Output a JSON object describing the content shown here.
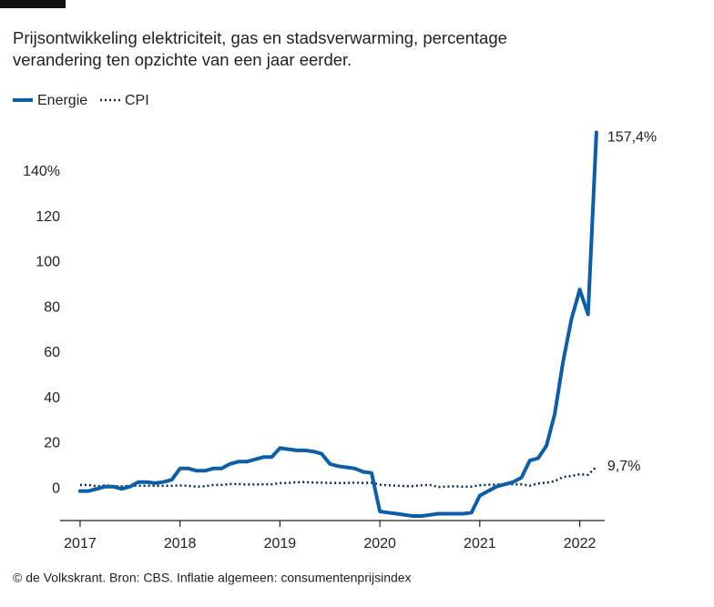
{
  "chart_data": {
    "type": "line",
    "title": "Prijsontwikkeling elektriciteit, gas en stadsverwarming, percentage verandering ten opzichte van een jaar eerder.",
    "source": "© de Volkskrant. Bron: CBS. Inflatie algemeen: consumentenprijsindex",
    "x": [
      2017,
      2017.083,
      2017.167,
      2017.25,
      2017.333,
      2017.417,
      2017.5,
      2017.583,
      2017.667,
      2017.75,
      2017.833,
      2017.917,
      2018,
      2018.083,
      2018.167,
      2018.25,
      2018.333,
      2018.417,
      2018.5,
      2018.583,
      2018.667,
      2018.75,
      2018.833,
      2018.917,
      2019,
      2019.083,
      2019.167,
      2019.25,
      2019.333,
      2019.417,
      2019.5,
      2019.583,
      2019.667,
      2019.75,
      2019.833,
      2019.917,
      2020,
      2020.083,
      2020.167,
      2020.25,
      2020.333,
      2020.417,
      2020.5,
      2020.583,
      2020.667,
      2020.75,
      2020.833,
      2020.917,
      2021,
      2021.083,
      2021.167,
      2021.25,
      2021.333,
      2021.417,
      2021.5,
      2021.583,
      2021.667,
      2021.75,
      2021.833,
      2021.917,
      2022,
      2022.083,
      2022.167
    ],
    "series": [
      {
        "name": "Energie",
        "color": "#0b5ea8",
        "style": "solid",
        "values": [
          -1,
          -1,
          0,
          1,
          1,
          0,
          1,
          3,
          3,
          2.5,
          3,
          4,
          9,
          9,
          8,
          8,
          9,
          9,
          11,
          12,
          12,
          13,
          14,
          14,
          18,
          17.5,
          17,
          17,
          16.5,
          15.5,
          11,
          10,
          9.5,
          9,
          7.5,
          7,
          -10,
          -10.5,
          -11,
          -11.5,
          -12,
          -12,
          -11.5,
          -11,
          -11,
          -11,
          -11,
          -10.5,
          -3,
          -1,
          1,
          2,
          3,
          5,
          12.5,
          13.5,
          19,
          33,
          56,
          75,
          88,
          77,
          157.4
        ],
        "value_labels": [
          null,
          null,
          null,
          null,
          null,
          null,
          null,
          null,
          null,
          null,
          null,
          null,
          null,
          null,
          null,
          null,
          null,
          null,
          null,
          null,
          null,
          null,
          null,
          null,
          null,
          null,
          null,
          null,
          null,
          null,
          null,
          null,
          null,
          null,
          null,
          null,
          null,
          null,
          null,
          null,
          null,
          null,
          null,
          null,
          null,
          null,
          null,
          null,
          null,
          null,
          null,
          null,
          null,
          null,
          null,
          null,
          null,
          null,
          null,
          null,
          null,
          null,
          "157,4%"
        ]
      },
      {
        "name": "CPI",
        "color": "#0a2a50",
        "style": "dotted",
        "values": [
          1.7,
          1.7,
          1.1,
          1.6,
          1.1,
          1.1,
          1.4,
          1.4,
          1.4,
          1.3,
          1.3,
          1.3,
          1.5,
          1.3,
          1.0,
          1.1,
          1.7,
          1.7,
          2.1,
          2.1,
          1.9,
          1.9,
          2.0,
          2.0,
          2.5,
          2.6,
          2.9,
          3.0,
          2.8,
          2.7,
          2.6,
          2.6,
          2.6,
          2.7,
          2.6,
          2.7,
          1.8,
          1.6,
          1.4,
          1.2,
          1.2,
          1.6,
          1.7,
          0.8,
          1.0,
          1.1,
          0.9,
          1.0,
          1.6,
          1.8,
          1.9,
          1.9,
          2.0,
          2.0,
          1.4,
          2.4,
          2.7,
          3.4,
          5.2,
          5.7,
          6.4,
          6.2,
          9.7
        ],
        "value_labels": [
          null,
          null,
          null,
          null,
          null,
          null,
          null,
          null,
          null,
          null,
          null,
          null,
          null,
          null,
          null,
          null,
          null,
          null,
          null,
          null,
          null,
          null,
          null,
          null,
          null,
          null,
          null,
          null,
          null,
          null,
          null,
          null,
          null,
          null,
          null,
          null,
          null,
          null,
          null,
          null,
          null,
          null,
          null,
          null,
          null,
          null,
          null,
          null,
          null,
          null,
          null,
          null,
          null,
          null,
          null,
          null,
          null,
          null,
          null,
          null,
          null,
          null,
          "9,7%"
        ]
      }
    ],
    "xlim": [
      2016.8,
      2022.25
    ],
    "xticks": [
      2017,
      2018,
      2019,
      2020,
      2021,
      2022
    ],
    "ylim": [
      -14,
      160
    ],
    "yticks": [
      0,
      20,
      40,
      60,
      80,
      100,
      120,
      {
        "value": 140,
        "label": "140%"
      }
    ],
    "grid": false,
    "legend": "top-left"
  }
}
